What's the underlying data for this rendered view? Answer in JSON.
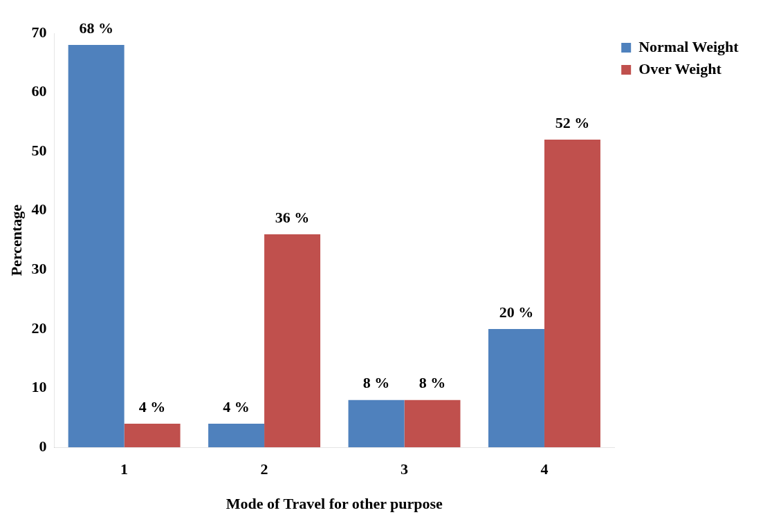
{
  "chart_data": {
    "type": "bar",
    "xlabel": "Mode of Travel for other purpose",
    "ylabel": "Percentage",
    "categories": [
      "1",
      "2",
      "3",
      "4"
    ],
    "series": [
      {
        "name": "Normal Weight",
        "color": "#4f81bd",
        "values": [
          68,
          4,
          8,
          20
        ],
        "value_labels": [
          "68 %",
          "4 %",
          "8 %",
          "20 %"
        ]
      },
      {
        "name": "Over Weight",
        "color": "#c0504d",
        "values": [
          4,
          36,
          8,
          52
        ],
        "value_labels": [
          "4 %",
          "36 %",
          "8 %",
          "52 %"
        ]
      }
    ],
    "ylim": [
      0,
      70
    ],
    "yticks": [
      0,
      10,
      20,
      30,
      40,
      50,
      60,
      70
    ],
    "grid": false,
    "legend": "top right"
  }
}
